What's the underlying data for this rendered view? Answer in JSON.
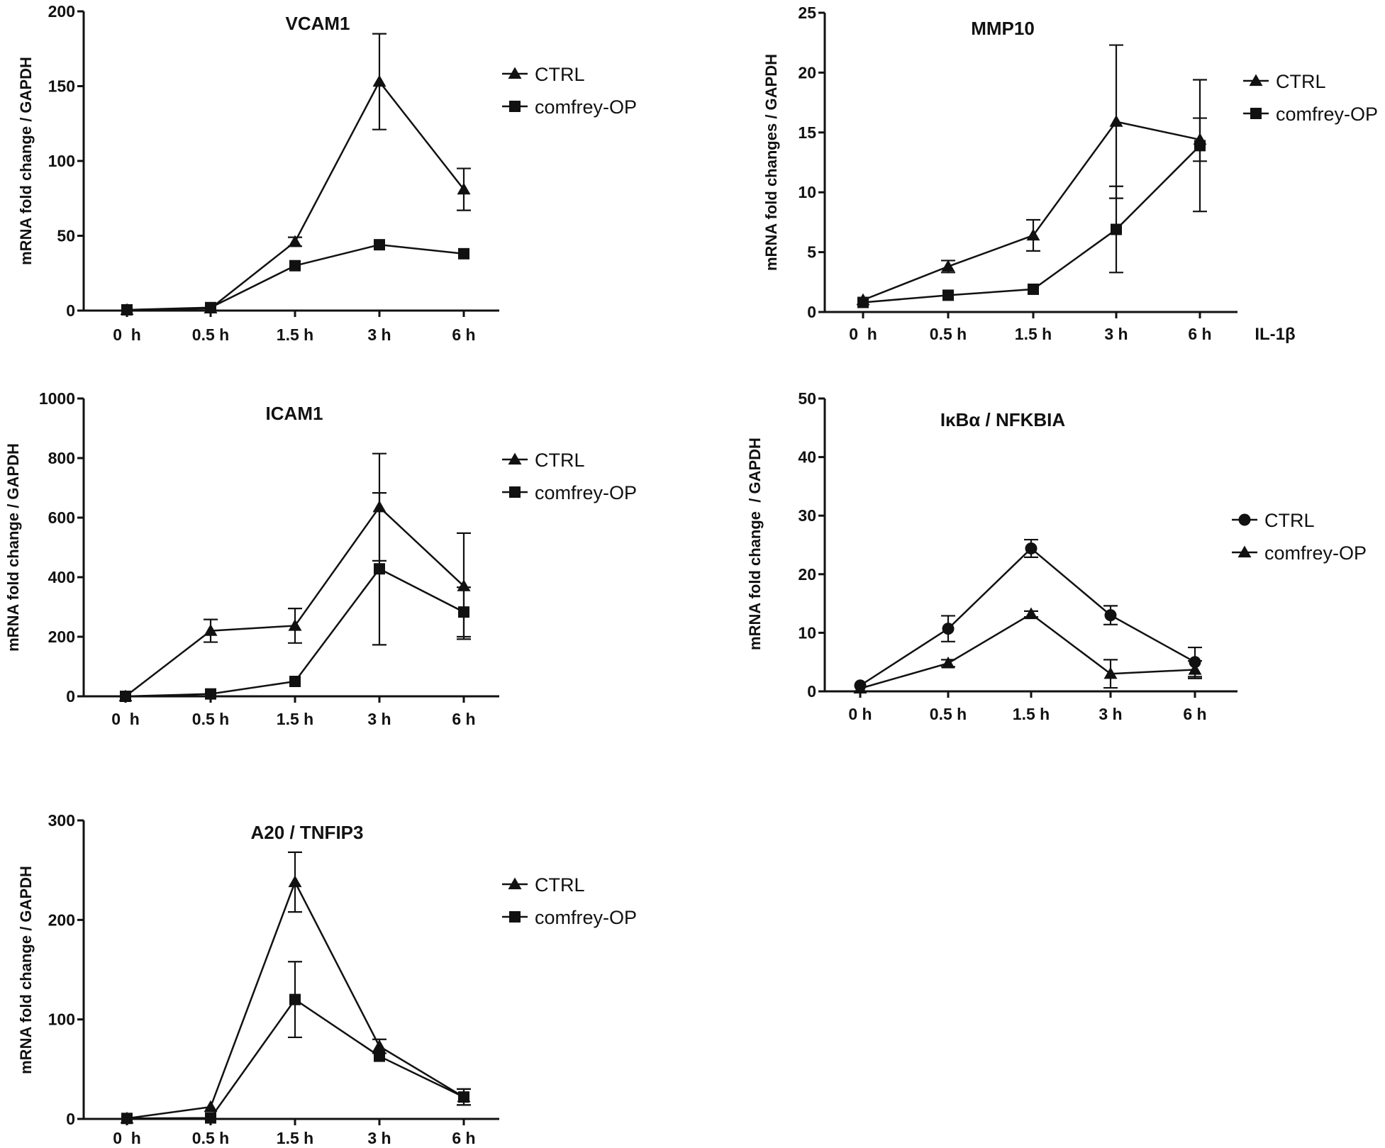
{
  "chart_data": [
    {
      "type": "line",
      "title": "VCAM1",
      "ylabel": "mRNA fold change / GAPDH",
      "xlabel": "",
      "categories": [
        "0  h",
        "0.5 h",
        "1.5 h",
        "3 h",
        "6 h"
      ],
      "ylim": [
        0,
        200
      ],
      "yticks": [
        "0",
        "50",
        "100",
        "150",
        "200"
      ],
      "legend_position": "top-right",
      "series": [
        {
          "name": "CTRL",
          "marker": "triangle",
          "values": [
            0.5,
            1.5,
            46,
            153,
            81
          ],
          "errors": [
            0,
            0,
            3,
            32,
            14
          ]
        },
        {
          "name": "comfrey-OP",
          "marker": "square",
          "values": [
            0.5,
            2,
            30,
            44,
            38
          ],
          "errors": [
            0,
            0,
            0,
            0,
            0
          ]
        }
      ]
    },
    {
      "type": "line",
      "title": "MMP10",
      "ylabel": "mRNA fold changes / GAPDH",
      "xlabel": "IL-1β",
      "categories": [
        "0  h",
        "0.5 h",
        "1.5 h",
        "3 h",
        "6 h"
      ],
      "ylim": [
        0,
        25
      ],
      "yticks": [
        "0",
        "5",
        "10",
        "15",
        "20",
        "25"
      ],
      "legend_position": "top-right",
      "series": [
        {
          "name": "CTRL",
          "marker": "triangle",
          "values": [
            1,
            3.8,
            6.4,
            15.9,
            14.4
          ],
          "errors": [
            0,
            0.5,
            1.3,
            6.4,
            1.8
          ]
        },
        {
          "name": "comfrey-OP",
          "marker": "square",
          "values": [
            0.8,
            1.4,
            1.9,
            6.9,
            13.9
          ],
          "errors": [
            0,
            0,
            0,
            3.6,
            5.5
          ]
        }
      ]
    },
    {
      "type": "line",
      "title": "ICAM1",
      "ylabel": "mRNA fold change / GAPDH",
      "xlabel": "",
      "categories": [
        "0  h",
        "0.5 h",
        "1.5 h",
        "3 h",
        "6 h"
      ],
      "ylim": [
        0,
        1000
      ],
      "yticks": [
        "0",
        "200",
        "400",
        "600",
        "800",
        "1000"
      ],
      "legend_position": "top-right",
      "series": [
        {
          "name": "CTRL",
          "marker": "triangle",
          "values": [
            0,
            220,
            237,
            635,
            370
          ],
          "errors": [
            0,
            38,
            58,
            180,
            178
          ]
        },
        {
          "name": "comfrey-OP",
          "marker": "square",
          "values": [
            0,
            8,
            50,
            428,
            283
          ],
          "errors": [
            0,
            0,
            0,
            255,
            83
          ]
        }
      ]
    },
    {
      "type": "line",
      "title": "IκBα / NFKBIA",
      "ylabel": "mRNA fold change  / GAPDH",
      "xlabel": "",
      "categories": [
        "0 h",
        "0.5 h",
        "1.5 h",
        "3 h",
        "6 h"
      ],
      "ylim": [
        0,
        50
      ],
      "yticks": [
        "0",
        "10",
        "20",
        "30",
        "40",
        "50"
      ],
      "legend_position": "right",
      "series": [
        {
          "name": "CTRL",
          "marker": "circle",
          "values": [
            1,
            10.7,
            24.4,
            13,
            5
          ],
          "errors": [
            0,
            2.2,
            1.5,
            1.6,
            2.5
          ]
        },
        {
          "name": "comfrey-OP",
          "marker": "triangle",
          "values": [
            0.5,
            4.8,
            13.2,
            3,
            3.7
          ],
          "errors": [
            0,
            0.6,
            0.5,
            2.4,
            1.5
          ]
        }
      ]
    },
    {
      "type": "line",
      "title": "A20 / TNFIP3",
      "ylabel": "mRNA fold change / GAPDH",
      "xlabel": "",
      "categories": [
        "0  h",
        "0.5 h",
        "1.5 h",
        "3 h",
        "6 h"
      ],
      "ylim": [
        0,
        300
      ],
      "yticks": [
        "0",
        "100",
        "200",
        "300"
      ],
      "legend_position": "top-right",
      "series": [
        {
          "name": "CTRL",
          "marker": "triangle",
          "values": [
            0.5,
            12,
            238,
            73,
            22
          ],
          "errors": [
            0,
            0,
            30,
            7,
            8
          ]
        },
        {
          "name": "comfrey-OP",
          "marker": "square",
          "values": [
            0.5,
            1,
            120,
            63,
            22
          ],
          "errors": [
            0,
            0,
            38,
            0,
            8
          ]
        }
      ]
    }
  ],
  "colors": {
    "ink": "#111111",
    "background": "#ffffff"
  }
}
